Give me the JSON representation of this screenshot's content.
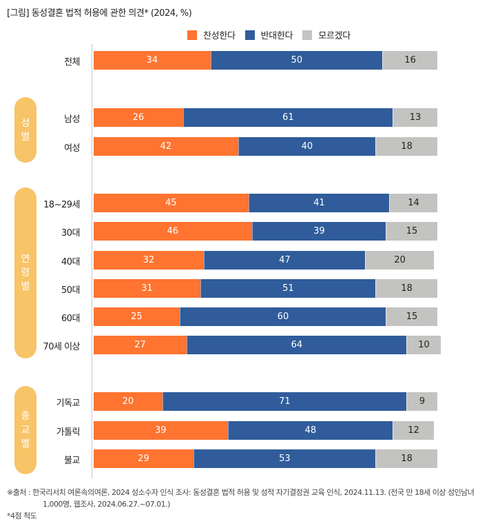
{
  "chart_data": {
    "type": "bar",
    "orientation": "horizontal-stacked",
    "title": "[그림] 동성결혼 법적 허용에 관한 의견* (2024, %)",
    "xlabel": "",
    "ylabel": "",
    "xlim": [
      0,
      100
    ],
    "grid": false,
    "legend_position": "top-right",
    "series": [
      {
        "name": "찬성한다",
        "color": "#fe7430"
      },
      {
        "name": "반대한다",
        "color": "#305c9b"
      },
      {
        "name": "모르겠다",
        "color": "#c3c3c1"
      }
    ],
    "groups": [
      {
        "label": "",
        "rows": [
          {
            "category": "전체",
            "values": [
              34,
              50,
              16
            ]
          }
        ]
      },
      {
        "label": "성별",
        "label_chars": [
          "성",
          "별"
        ],
        "rows": [
          {
            "category": "남성",
            "values": [
              26,
              61,
              13
            ]
          },
          {
            "category": "여성",
            "values": [
              42,
              40,
              18
            ]
          }
        ]
      },
      {
        "label": "연령별",
        "label_chars": [
          "연",
          "령",
          "별"
        ],
        "rows": [
          {
            "category": "18~29세",
            "values": [
              45,
              41,
              14
            ]
          },
          {
            "category": "30대",
            "values": [
              46,
              39,
              15
            ]
          },
          {
            "category": "40대",
            "values": [
              32,
              47,
              20
            ]
          },
          {
            "category": "50대",
            "values": [
              31,
              51,
              18
            ]
          },
          {
            "category": "60대",
            "values": [
              25,
              60,
              15
            ]
          },
          {
            "category": "70세 이상",
            "values": [
              27,
              64,
              10
            ]
          }
        ]
      },
      {
        "label": "종교별",
        "label_chars": [
          "종",
          "교",
          "별"
        ],
        "rows": [
          {
            "category": "기독교",
            "values": [
              20,
              71,
              9
            ]
          },
          {
            "category": "가톨릭",
            "values": [
              39,
              48,
              12
            ]
          },
          {
            "category": "불교",
            "values": [
              29,
              53,
              18
            ]
          }
        ]
      }
    ]
  },
  "footnote": {
    "source_line1": "※출처 : 한국리서치 여론속의여론, 2024 성소수자 인식 조사: 동성결혼 법적 허용 및 성적 자기결정권 교육 인식, 2024.11.13. (전국 만 18세 이상 성인남녀",
    "source_line2": "1,000명, 웹조사, 2024.06.27.~07.01.)",
    "scale_note": "*4점 척도"
  }
}
